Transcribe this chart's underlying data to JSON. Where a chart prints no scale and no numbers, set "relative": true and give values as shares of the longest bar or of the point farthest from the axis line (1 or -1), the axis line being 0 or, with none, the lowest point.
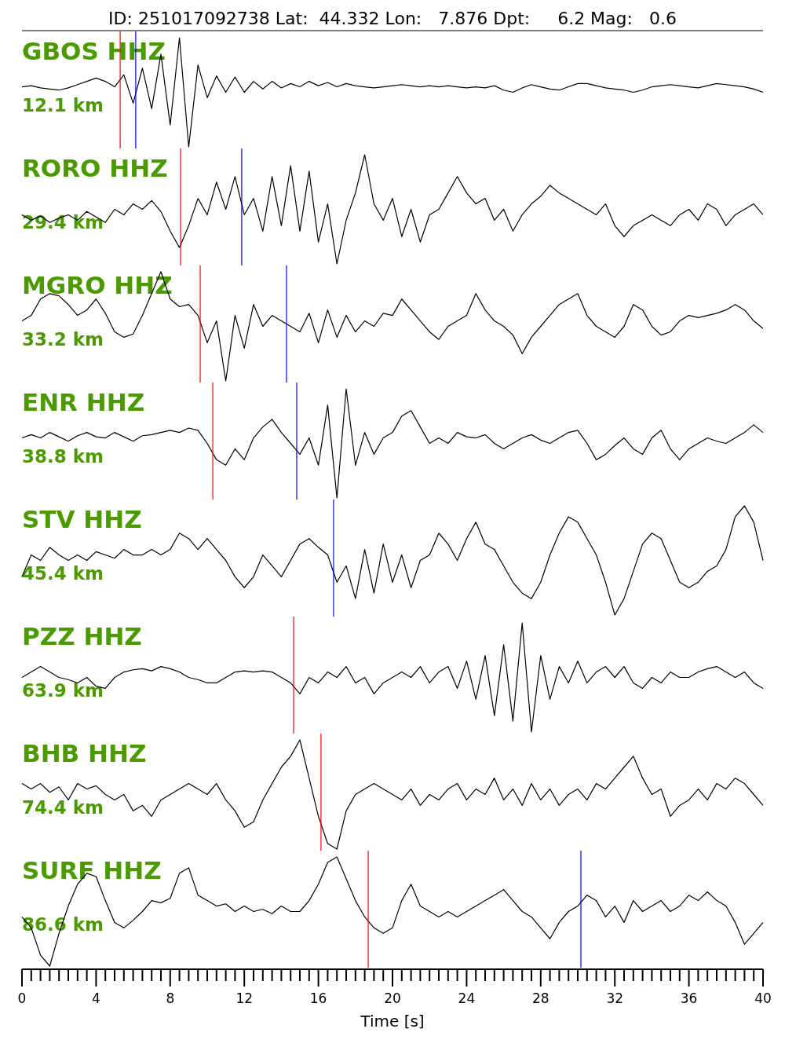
{
  "chart_data": [
    {
      "type": "line",
      "title": "GBOS HHZ",
      "subtitle": "12.1 km",
      "annotations": [
        "ID: 251017092738 Lat:  44.332 Lon:   7.876 Dpt:     6.2 Mag:   0.6"
      ],
      "relative": true,
      "tick_labels": false,
      "xlim": [
        0,
        40
      ],
      "x": [
        0,
        0.5,
        1,
        1.5,
        2,
        2.5,
        3,
        3.5,
        4,
        4.5,
        5,
        5.5,
        6,
        6.5,
        7,
        7.5,
        8,
        8.5,
        9,
        9.5,
        10,
        10.5,
        11,
        11.5,
        12,
        12.5,
        13,
        13.5,
        14,
        14.5,
        15,
        15.5,
        16,
        16.5,
        17,
        17.5,
        18,
        18.5,
        19,
        19.5,
        20,
        20.5,
        21,
        21.5,
        22,
        22.5,
        23,
        23.5,
        24,
        24.5,
        25,
        25.5,
        26,
        26.5,
        27,
        27.5,
        28,
        28.5,
        29,
        29.5,
        30,
        30.5,
        31,
        31.5,
        32,
        32.5,
        33,
        33.5,
        34,
        34.5,
        35,
        35.5,
        36,
        36.5,
        37,
        37.5,
        38,
        38.5,
        39,
        39.5,
        40
      ],
      "series": [
        {
          "color": "#000000",
          "values": [
            0.55,
            0.56,
            0.54,
            0.53,
            0.52,
            0.54,
            0.57,
            0.6,
            0.63,
            0.6,
            0.55,
            0.66,
            0.4,
            0.72,
            0.35,
            0.85,
            0.2,
            1.0,
            0.0,
            0.75,
            0.45,
            0.65,
            0.5,
            0.64,
            0.5,
            0.6,
            0.53,
            0.6,
            0.54,
            0.58,
            0.55,
            0.6,
            0.56,
            0.59,
            0.55,
            0.58,
            0.56,
            0.55,
            0.54,
            0.55,
            0.56,
            0.57,
            0.56,
            0.55,
            0.56,
            0.55,
            0.56,
            0.55,
            0.54,
            0.55,
            0.54,
            0.56,
            0.52,
            0.5,
            0.54,
            0.57,
            0.55,
            0.53,
            0.52,
            0.55,
            0.58,
            0.58,
            0.56,
            0.54,
            0.53,
            0.52,
            0.5,
            0.52,
            0.55,
            0.56,
            0.57,
            0.56,
            0.55,
            0.54,
            0.56,
            0.58,
            0.57,
            0.56,
            0.55,
            0.53,
            0.5
          ]
        }
      ],
      "ref_lines": [
        {
          "axis": "x",
          "value": 5.3,
          "color": "#ff0000"
        },
        {
          "axis": "x",
          "value": 6.14,
          "color": "#0000ff"
        }
      ]
    },
    {
      "type": "line",
      "title": "RORO HHZ",
      "subtitle": "29.4 km",
      "relative": true,
      "tick_labels": false,
      "xlim": [
        0,
        40
      ],
      "x": [
        0,
        0.5,
        1,
        1.5,
        2,
        2.5,
        3,
        3.5,
        4,
        4.5,
        5,
        5.5,
        6,
        6.5,
        7,
        7.5,
        8,
        8.5,
        9,
        9.5,
        10,
        10.5,
        11,
        11.5,
        12,
        12.5,
        13,
        13.5,
        14,
        14.5,
        15,
        15.5,
        16,
        16.5,
        17,
        17.5,
        18,
        18.5,
        19,
        19.5,
        20,
        20.5,
        21,
        21.5,
        22,
        22.5,
        23,
        23.5,
        24,
        24.5,
        25,
        25.5,
        26,
        26.5,
        27,
        27.5,
        28,
        28.5,
        29,
        29.5,
        30,
        30.5,
        31,
        31.5,
        32,
        32.5,
        33,
        33.5,
        34,
        34.5,
        35,
        35.5,
        36,
        36.5,
        37,
        37.5,
        38,
        38.5,
        39,
        39.5,
        40
      ],
      "series": [
        {
          "color": "#000000",
          "values": [
            0.45,
            0.4,
            0.44,
            0.38,
            0.42,
            0.45,
            0.4,
            0.48,
            0.43,
            0.38,
            0.5,
            0.45,
            0.55,
            0.5,
            0.58,
            0.48,
            0.3,
            0.15,
            0.35,
            0.6,
            0.45,
            0.75,
            0.5,
            0.8,
            0.45,
            0.6,
            0.3,
            0.8,
            0.35,
            0.9,
            0.3,
            0.85,
            0.2,
            0.55,
            0.0,
            0.4,
            0.65,
            1.0,
            0.55,
            0.4,
            0.6,
            0.25,
            0.5,
            0.2,
            0.45,
            0.5,
            0.65,
            0.8,
            0.65,
            0.55,
            0.6,
            0.4,
            0.5,
            0.3,
            0.45,
            0.55,
            0.62,
            0.72,
            0.65,
            0.6,
            0.55,
            0.5,
            0.45,
            0.55,
            0.35,
            0.25,
            0.35,
            0.4,
            0.45,
            0.4,
            0.35,
            0.45,
            0.5,
            0.4,
            0.55,
            0.5,
            0.35,
            0.45,
            0.5,
            0.55,
            0.45
          ]
        }
      ],
      "ref_lines": [
        {
          "axis": "x",
          "value": 8.56,
          "color": "#ff0000"
        },
        {
          "axis": "x",
          "value": 11.86,
          "color": "#0000ff"
        }
      ]
    },
    {
      "type": "line",
      "title": "MGRO HHZ",
      "subtitle": "33.2 km",
      "relative": true,
      "tick_labels": false,
      "xlim": [
        0,
        40
      ],
      "x": [
        0,
        0.5,
        1,
        1.5,
        2,
        2.5,
        3,
        3.5,
        4,
        4.5,
        5,
        5.5,
        6,
        6.5,
        7,
        7.5,
        8,
        8.5,
        9,
        9.5,
        10,
        10.5,
        11,
        11.5,
        12,
        12.5,
        13,
        13.5,
        14,
        14.5,
        15,
        15.5,
        16,
        16.5,
        17,
        17.5,
        18,
        18.5,
        19,
        19.5,
        20,
        20.5,
        21,
        21.5,
        22,
        22.5,
        23,
        23.5,
        24,
        24.5,
        25,
        25.5,
        26,
        26.5,
        27,
        27.5,
        28,
        28.5,
        29,
        29.5,
        30,
        30.5,
        31,
        31.5,
        32,
        32.5,
        33,
        33.5,
        34,
        34.5,
        35,
        35.5,
        36,
        36.5,
        37,
        37.5,
        38,
        38.5,
        39,
        39.5,
        40
      ],
      "series": [
        {
          "color": "#000000",
          "values": [
            0.55,
            0.6,
            0.75,
            0.8,
            0.78,
            0.7,
            0.6,
            0.65,
            0.75,
            0.62,
            0.45,
            0.4,
            0.43,
            0.6,
            0.8,
            1.0,
            0.75,
            0.68,
            0.7,
            0.6,
            0.35,
            0.55,
            0.0,
            0.6,
            0.3,
            0.7,
            0.5,
            0.6,
            0.55,
            0.5,
            0.45,
            0.62,
            0.35,
            0.65,
            0.4,
            0.6,
            0.45,
            0.55,
            0.5,
            0.62,
            0.6,
            0.75,
            0.65,
            0.55,
            0.45,
            0.38,
            0.5,
            0.55,
            0.6,
            0.8,
            0.65,
            0.55,
            0.5,
            0.42,
            0.25,
            0.4,
            0.5,
            0.6,
            0.7,
            0.75,
            0.8,
            0.6,
            0.5,
            0.45,
            0.4,
            0.5,
            0.7,
            0.65,
            0.5,
            0.42,
            0.45,
            0.55,
            0.6,
            0.58,
            0.6,
            0.62,
            0.65,
            0.7,
            0.65,
            0.55,
            0.48
          ]
        }
      ],
      "ref_lines": [
        {
          "axis": "x",
          "value": 9.62,
          "color": "#ff0000"
        },
        {
          "axis": "x",
          "value": 14.28,
          "color": "#0000ff"
        }
      ]
    },
    {
      "type": "line",
      "title": "ENR HHZ",
      "subtitle": "38.8 km",
      "relative": true,
      "tick_labels": false,
      "xlim": [
        0,
        40
      ],
      "x": [
        0,
        0.5,
        1,
        1.5,
        2,
        2.5,
        3,
        3.5,
        4,
        4.5,
        5,
        5.5,
        6,
        6.5,
        7,
        7.5,
        8,
        8.5,
        9,
        9.5,
        10,
        10.5,
        11,
        11.5,
        12,
        12.5,
        13,
        13.5,
        14,
        14.5,
        15,
        15.5,
        16,
        16.5,
        17,
        17.5,
        18,
        18.5,
        19,
        19.5,
        20,
        20.5,
        21,
        21.5,
        22,
        22.5,
        23,
        23.5,
        24,
        24.5,
        25,
        25.5,
        26,
        26.5,
        27,
        27.5,
        28,
        28.5,
        29,
        29.5,
        30,
        30.5,
        31,
        31.5,
        32,
        32.5,
        33,
        33.5,
        34,
        34.5,
        35,
        35.5,
        36,
        36.5,
        37,
        37.5,
        38,
        38.5,
        39,
        39.5,
        40
      ],
      "series": [
        {
          "color": "#000000",
          "values": [
            0.55,
            0.58,
            0.55,
            0.6,
            0.56,
            0.52,
            0.57,
            0.6,
            0.56,
            0.55,
            0.6,
            0.56,
            0.52,
            0.57,
            0.58,
            0.6,
            0.62,
            0.6,
            0.64,
            0.62,
            0.5,
            0.35,
            0.3,
            0.45,
            0.35,
            0.55,
            0.65,
            0.72,
            0.6,
            0.5,
            0.4,
            0.55,
            0.3,
            0.85,
            0.0,
            1.0,
            0.3,
            0.6,
            0.4,
            0.55,
            0.6,
            0.75,
            0.8,
            0.65,
            0.5,
            0.55,
            0.5,
            0.6,
            0.56,
            0.55,
            0.58,
            0.5,
            0.45,
            0.5,
            0.55,
            0.58,
            0.53,
            0.5,
            0.55,
            0.6,
            0.62,
            0.5,
            0.35,
            0.4,
            0.48,
            0.55,
            0.45,
            0.4,
            0.55,
            0.62,
            0.45,
            0.35,
            0.45,
            0.5,
            0.55,
            0.52,
            0.5,
            0.55,
            0.6,
            0.67,
            0.6
          ]
        }
      ],
      "ref_lines": [
        {
          "axis": "x",
          "value": 10.3,
          "color": "#ff0000"
        },
        {
          "axis": "x",
          "value": 14.83,
          "color": "#0000ff"
        }
      ]
    },
    {
      "type": "line",
      "title": "STV HHZ",
      "subtitle": "45.4 km",
      "relative": true,
      "tick_labels": false,
      "xlim": [
        0,
        40
      ],
      "x": [
        0,
        0.5,
        1,
        1.5,
        2,
        2.5,
        3,
        3.5,
        4,
        4.5,
        5,
        5.5,
        6,
        6.5,
        7,
        7.5,
        8,
        8.5,
        9,
        9.5,
        10,
        10.5,
        11,
        11.5,
        12,
        12.5,
        13,
        13.5,
        14,
        14.5,
        15,
        15.5,
        16,
        16.5,
        17,
        17.5,
        18,
        18.5,
        19,
        19.5,
        20,
        20.5,
        21,
        21.5,
        22,
        22.5,
        23,
        23.5,
        24,
        24.5,
        25,
        25.5,
        26,
        26.5,
        27,
        27.5,
        28,
        28.5,
        29,
        29.5,
        30,
        30.5,
        31,
        31.5,
        32,
        32.5,
        33,
        33.5,
        34,
        34.5,
        35,
        35.5,
        36,
        36.5,
        37,
        37.5,
        38,
        38.5,
        39,
        39.5,
        40
      ],
      "series": [
        {
          "color": "#000000",
          "values": [
            0.35,
            0.55,
            0.5,
            0.62,
            0.55,
            0.5,
            0.55,
            0.5,
            0.58,
            0.55,
            0.52,
            0.6,
            0.55,
            0.55,
            0.6,
            0.55,
            0.6,
            0.75,
            0.7,
            0.6,
            0.7,
            0.6,
            0.5,
            0.35,
            0.25,
            0.35,
            0.55,
            0.45,
            0.35,
            0.5,
            0.65,
            0.7,
            0.62,
            0.55,
            0.3,
            0.45,
            0.15,
            0.6,
            0.2,
            0.65,
            0.3,
            0.55,
            0.25,
            0.5,
            0.55,
            0.75,
            0.65,
            0.5,
            0.7,
            0.85,
            0.65,
            0.6,
            0.45,
            0.3,
            0.2,
            0.15,
            0.3,
            0.55,
            0.75,
            0.9,
            0.85,
            0.7,
            0.55,
            0.3,
            0.0,
            0.15,
            0.4,
            0.65,
            0.75,
            0.7,
            0.5,
            0.3,
            0.25,
            0.3,
            0.4,
            0.45,
            0.6,
            0.9,
            1.0,
            0.85,
            0.5
          ]
        }
      ],
      "ref_lines": [
        {
          "axis": "x",
          "value": 16.82,
          "color": "#0000ff"
        }
      ]
    },
    {
      "type": "line",
      "title": "PZZ HHZ",
      "subtitle": "63.9 km",
      "relative": true,
      "tick_labels": false,
      "xlim": [
        0,
        40
      ],
      "x": [
        0,
        0.5,
        1,
        1.5,
        2,
        2.5,
        3,
        3.5,
        4,
        4.5,
        5,
        5.5,
        6,
        6.5,
        7,
        7.5,
        8,
        8.5,
        9,
        9.5,
        10,
        10.5,
        11,
        11.5,
        12,
        12.5,
        13,
        13.5,
        14,
        14.5,
        15,
        15.5,
        16,
        16.5,
        17,
        17.5,
        18,
        18.5,
        19,
        19.5,
        20,
        20.5,
        21,
        21.5,
        22,
        22.5,
        23,
        23.5,
        24,
        24.5,
        25,
        25.5,
        26,
        26.5,
        27,
        27.5,
        28,
        28.5,
        29,
        29.5,
        30,
        30.5,
        31,
        31.5,
        32,
        32.5,
        33,
        33.5,
        34,
        34.5,
        35,
        35.5,
        36,
        36.5,
        37,
        37.5,
        38,
        38.5,
        39,
        39.5,
        40
      ],
      "series": [
        {
          "color": "#000000",
          "values": [
            0.5,
            0.55,
            0.6,
            0.55,
            0.5,
            0.48,
            0.45,
            0.5,
            0.42,
            0.4,
            0.5,
            0.55,
            0.57,
            0.58,
            0.56,
            0.6,
            0.58,
            0.55,
            0.5,
            0.48,
            0.45,
            0.45,
            0.5,
            0.55,
            0.56,
            0.55,
            0.56,
            0.55,
            0.5,
            0.45,
            0.35,
            0.5,
            0.45,
            0.55,
            0.5,
            0.6,
            0.45,
            0.5,
            0.35,
            0.45,
            0.5,
            0.55,
            0.5,
            0.6,
            0.45,
            0.55,
            0.6,
            0.4,
            0.65,
            0.3,
            0.7,
            0.15,
            0.8,
            0.1,
            1.0,
            0.0,
            0.7,
            0.3,
            0.6,
            0.45,
            0.65,
            0.45,
            0.55,
            0.6,
            0.5,
            0.6,
            0.45,
            0.4,
            0.5,
            0.45,
            0.55,
            0.5,
            0.5,
            0.55,
            0.58,
            0.6,
            0.55,
            0.5,
            0.55,
            0.45,
            0.4
          ]
        }
      ],
      "ref_lines": [
        {
          "axis": "x",
          "value": 14.66,
          "color": "#ff0000"
        }
      ]
    },
    {
      "type": "line",
      "title": "BHB HHZ",
      "subtitle": "74.4 km",
      "relative": true,
      "tick_labels": false,
      "xlim": [
        0,
        40
      ],
      "x": [
        0,
        0.5,
        1,
        1.5,
        2,
        2.5,
        3,
        3.5,
        4,
        4.5,
        5,
        5.5,
        6,
        6.5,
        7,
        7.5,
        8,
        8.5,
        9,
        9.5,
        10,
        10.5,
        11,
        11.5,
        12,
        12.5,
        13,
        13.5,
        14,
        14.5,
        15,
        15.5,
        16,
        16.5,
        17,
        17.5,
        18,
        18.5,
        19,
        19.5,
        20,
        20.5,
        21,
        21.5,
        22,
        22.5,
        23,
        23.5,
        24,
        24.5,
        25,
        25.5,
        26,
        26.5,
        27,
        27.5,
        28,
        28.5,
        29,
        29.5,
        30,
        30.5,
        31,
        31.5,
        32,
        32.5,
        33,
        33.5,
        34,
        34.5,
        35,
        35.5,
        36,
        36.5,
        37,
        37.5,
        38,
        38.5,
        39,
        39.5,
        40
      ],
      "series": [
        {
          "color": "#000000",
          "values": [
            0.6,
            0.55,
            0.6,
            0.52,
            0.57,
            0.45,
            0.6,
            0.55,
            0.58,
            0.5,
            0.45,
            0.5,
            0.35,
            0.4,
            0.3,
            0.45,
            0.5,
            0.55,
            0.6,
            0.55,
            0.5,
            0.6,
            0.45,
            0.35,
            0.2,
            0.25,
            0.45,
            0.6,
            0.75,
            0.85,
            1.0,
            0.65,
            0.3,
            0.05,
            0.0,
            0.35,
            0.5,
            0.55,
            0.6,
            0.55,
            0.5,
            0.45,
            0.55,
            0.4,
            0.5,
            0.45,
            0.55,
            0.6,
            0.45,
            0.55,
            0.5,
            0.65,
            0.45,
            0.55,
            0.4,
            0.6,
            0.45,
            0.55,
            0.4,
            0.5,
            0.55,
            0.45,
            0.6,
            0.55,
            0.65,
            0.75,
            0.85,
            0.65,
            0.5,
            0.55,
            0.3,
            0.4,
            0.45,
            0.55,
            0.45,
            0.6,
            0.55,
            0.65,
            0.6,
            0.5,
            0.4
          ]
        }
      ],
      "ref_lines": [
        {
          "axis": "x",
          "value": 16.14,
          "color": "#ff0000"
        }
      ]
    },
    {
      "type": "line",
      "title": "SURF HHZ",
      "subtitle": "86.6 km",
      "relative": true,
      "xlabel": "Time [s]",
      "tick_labels": "x",
      "xlim": [
        0,
        40
      ],
      "xticks": [
        0,
        {
          "value": 0.5,
          "label": null
        },
        {
          "value": 1,
          "label": null
        },
        {
          "value": 1.5,
          "label": null
        },
        {
          "value": 2,
          "label": null
        },
        {
          "value": 2.5,
          "label": null
        },
        {
          "value": 3,
          "label": null
        },
        {
          "value": 3.5,
          "label": null
        },
        4,
        {
          "value": 4.5,
          "label": null
        },
        {
          "value": 5,
          "label": null
        },
        {
          "value": 5.5,
          "label": null
        },
        {
          "value": 6,
          "label": null
        },
        {
          "value": 6.5,
          "label": null
        },
        {
          "value": 7,
          "label": null
        },
        {
          "value": 7.5,
          "label": null
        },
        8,
        {
          "value": 8.5,
          "label": null
        },
        {
          "value": 9,
          "label": null
        },
        {
          "value": 9.5,
          "label": null
        },
        {
          "value": 10,
          "label": null
        },
        {
          "value": 10.5,
          "label": null
        },
        {
          "value": 11,
          "label": null
        },
        {
          "value": 11.5,
          "label": null
        },
        12,
        {
          "value": 12.5,
          "label": null
        },
        {
          "value": 13,
          "label": null
        },
        {
          "value": 13.5,
          "label": null
        },
        {
          "value": 14,
          "label": null
        },
        {
          "value": 14.5,
          "label": null
        },
        {
          "value": 15,
          "label": null
        },
        {
          "value": 15.5,
          "label": null
        },
        16,
        {
          "value": 16.5,
          "label": null
        },
        {
          "value": 17,
          "label": null
        },
        {
          "value": 17.5,
          "label": null
        },
        {
          "value": 18,
          "label": null
        },
        {
          "value": 18.5,
          "label": null
        },
        {
          "value": 19,
          "label": null
        },
        {
          "value": 19.5,
          "label": null
        },
        20,
        {
          "value": 20.5,
          "label": null
        },
        {
          "value": 21,
          "label": null
        },
        {
          "value": 21.5,
          "label": null
        },
        {
          "value": 22,
          "label": null
        },
        {
          "value": 22.5,
          "label": null
        },
        {
          "value": 23,
          "label": null
        },
        {
          "value": 23.5,
          "label": null
        },
        24,
        {
          "value": 24.5,
          "label": null
        },
        {
          "value": 25,
          "label": null
        },
        {
          "value": 25.5,
          "label": null
        },
        {
          "value": 26,
          "label": null
        },
        {
          "value": 26.5,
          "label": null
        },
        {
          "value": 27,
          "label": null
        },
        {
          "value": 27.5,
          "label": null
        },
        28,
        {
          "value": 28.5,
          "label": null
        },
        {
          "value": 29,
          "label": null
        },
        {
          "value": 29.5,
          "label": null
        },
        {
          "value": 30,
          "label": null
        },
        {
          "value": 30.5,
          "label": null
        },
        {
          "value": 31,
          "label": null
        },
        {
          "value": 31.5,
          "label": null
        },
        32,
        {
          "value": 32.5,
          "label": null
        },
        {
          "value": 33,
          "label": null
        },
        {
          "value": 33.5,
          "label": null
        },
        {
          "value": 34,
          "label": null
        },
        {
          "value": 34.5,
          "label": null
        },
        {
          "value": 35,
          "label": null
        },
        {
          "value": 35.5,
          "label": null
        },
        36,
        {
          "value": 36.5,
          "label": null
        },
        {
          "value": 37,
          "label": null
        },
        {
          "value": 37.5,
          "label": null
        },
        {
          "value": 38,
          "label": null
        },
        {
          "value": 38.5,
          "label": null
        },
        {
          "value": 39,
          "label": null
        },
        {
          "value": 39.5,
          "label": null
        },
        40
      ],
      "x": [
        0,
        0.5,
        1,
        1.5,
        2,
        2.5,
        3,
        3.5,
        4,
        4.5,
        5,
        5.5,
        6,
        6.5,
        7,
        7.5,
        8,
        8.5,
        9,
        9.5,
        10,
        10.5,
        11,
        11.5,
        12,
        12.5,
        13,
        13.5,
        14,
        14.5,
        15,
        15.5,
        16,
        16.5,
        17,
        17.5,
        18,
        18.5,
        19,
        19.5,
        20,
        20.5,
        21,
        21.5,
        22,
        22.5,
        23,
        23.5,
        24,
        24.5,
        25,
        25.5,
        26,
        26.5,
        27,
        27.5,
        28,
        28.5,
        29,
        29.5,
        30,
        30.5,
        31,
        31.5,
        32,
        32.5,
        33,
        33.5,
        34,
        34.5,
        35,
        35.5,
        36,
        36.5,
        37,
        37.5,
        38,
        38.5,
        39,
        39.5,
        40
      ],
      "series": [
        {
          "color": "#000000",
          "values": [
            0.45,
            0.35,
            0.1,
            0.0,
            0.3,
            0.55,
            0.75,
            0.85,
            0.82,
            0.6,
            0.4,
            0.35,
            0.42,
            0.5,
            0.6,
            0.58,
            0.62,
            0.85,
            0.9,
            0.65,
            0.6,
            0.55,
            0.57,
            0.5,
            0.55,
            0.5,
            0.52,
            0.48,
            0.55,
            0.5,
            0.5,
            0.6,
            0.75,
            0.95,
            1.0,
            0.8,
            0.6,
            0.45,
            0.35,
            0.3,
            0.35,
            0.6,
            0.75,
            0.55,
            0.5,
            0.45,
            0.5,
            0.45,
            0.5,
            0.55,
            0.6,
            0.65,
            0.7,
            0.6,
            0.5,
            0.45,
            0.35,
            0.25,
            0.4,
            0.5,
            0.55,
            0.65,
            0.6,
            0.45,
            0.55,
            0.4,
            0.6,
            0.5,
            0.55,
            0.6,
            0.5,
            0.55,
            0.65,
            0.6,
            0.68,
            0.6,
            0.55,
            0.4,
            0.2,
            0.3,
            0.4
          ]
        }
      ],
      "ref_lines": [
        {
          "axis": "x",
          "value": 18.69,
          "color": "#ff0000"
        },
        {
          "axis": "x",
          "value": 30.17,
          "color": "#0000ff"
        }
      ]
    }
  ]
}
